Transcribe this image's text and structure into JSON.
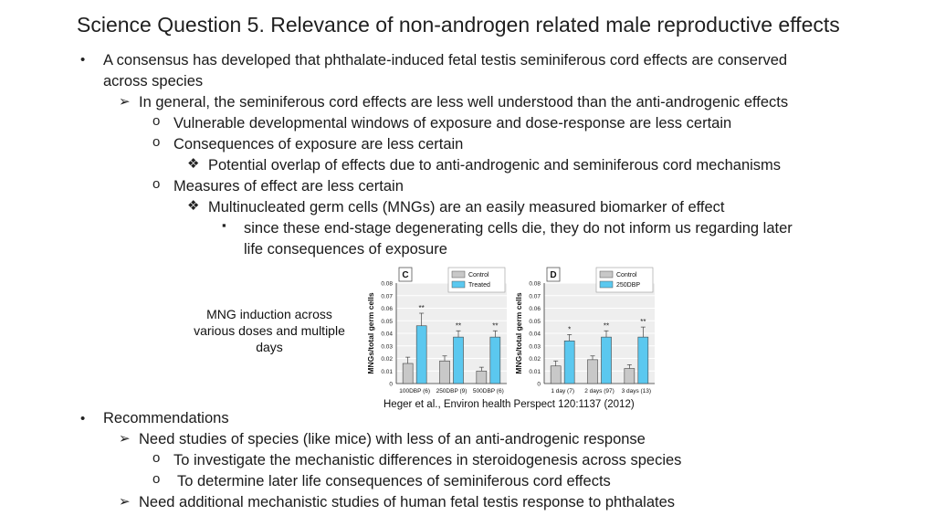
{
  "title": "Science Question 5. Relevance of non-androgen related male reproductive effects",
  "bullets": {
    "b1a": "A consensus has developed that phthalate-induced fetal testis seminiferous cord effects are conserved",
    "b1b": "across species",
    "b2": "In general, the seminiferous cord effects are less well understood than the anti-androgenic effects",
    "b3": "Vulnerable developmental windows of exposure and dose-response are less certain",
    "b4": "Consequences of exposure are less certain",
    "b5": "Potential overlap of effects due to anti-androgenic and seminiferous cord mechanisms",
    "b6": "Measures of effect are less certain",
    "b7": "Multinucleated germ cells (MNGs) are an easily measured biomarker of effect",
    "b8a": "since these end-stage degenerating cells die, they do not inform us regarding later",
    "b8b": "life consequences of exposure",
    "r1": "Recommendations",
    "r2": "Need studies of species (like mice) with less of an anti-androgenic response",
    "r3": "To investigate the mechanistic differences in steroidogenesis across species",
    "r4": "To determine later life consequences of seminiferous cord effects",
    "r5": "Need additional mechanistic studies of human fetal testis response to phthalates"
  },
  "markers": {
    "dot": "•",
    "arrow": "➢",
    "circle": "o",
    "diamond": "❖",
    "square": "▪"
  },
  "caption": "MNG induction across various doses and multiple days",
  "reference": "Heger et al., Environ health Perspect 120:1137 (2012)",
  "colors": {
    "control": "#c8c8c8",
    "treated": "#5bc8ef",
    "panel_bg": "#eeeeee"
  },
  "chart_data": [
    {
      "type": "bar",
      "panel": "C",
      "ylabel": "MNGs/total germ cells",
      "ylim": [
        0,
        0.08
      ],
      "yticks": [
        "0",
        "0.01",
        "0.02",
        "0.03",
        "0.04",
        "0.05",
        "0.06",
        "0.07",
        "0.08"
      ],
      "categories": [
        "100DBP (6)",
        "250DBP (9)",
        "500DBP (6)"
      ],
      "series": [
        {
          "name": "Control",
          "values": [
            0.016,
            0.018,
            0.01
          ],
          "errors": [
            0.005,
            0.004,
            0.003
          ]
        },
        {
          "name": "Treated",
          "values": [
            0.046,
            0.037,
            0.037
          ],
          "errors": [
            0.01,
            0.005,
            0.005
          ]
        }
      ],
      "annotations": [
        "**",
        "**",
        "**"
      ]
    },
    {
      "type": "bar",
      "panel": "D",
      "ylabel": "MNGs/total germ cells",
      "ylim": [
        0,
        0.08
      ],
      "yticks": [
        "0",
        "0.01",
        "0.02",
        "0.03",
        "0.04",
        "0.05",
        "0.06",
        "0.07",
        "0.08"
      ],
      "categories": [
        "1 day (7)",
        "2 days (97)",
        "3 days (13)"
      ],
      "series": [
        {
          "name": "Control",
          "values": [
            0.014,
            0.019,
            0.012
          ],
          "errors": [
            0.004,
            0.003,
            0.003
          ]
        },
        {
          "name": "250DBP",
          "values": [
            0.034,
            0.037,
            0.037
          ],
          "errors": [
            0.005,
            0.005,
            0.008
          ]
        }
      ],
      "annotations": [
        "*",
        "**",
        "**"
      ]
    }
  ]
}
